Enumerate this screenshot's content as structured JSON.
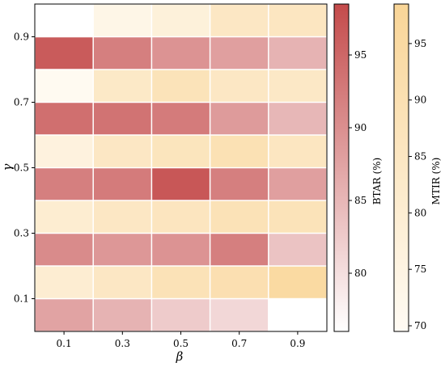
{
  "chart_data": {
    "type": "heatmap",
    "xlabel": "β",
    "ylabel": "γ",
    "x_ticks": [
      "0.1",
      "0.3",
      "0.5",
      "0.7",
      "0.9"
    ],
    "y_ticks": [
      "0.1",
      "0.3",
      "0.5",
      "0.7",
      "0.9"
    ],
    "metrics": [
      {
        "name": "BTAR (%)",
        "colormap": [
          "#ffffff",
          "#c44b4b"
        ],
        "range": [
          76,
          98.5
        ],
        "colorbar_ticks": [
          "80",
          "85",
          "90",
          "95"
        ],
        "rows": [
          {
            "gamma": "0.1",
            "values": [
              87.5,
              85.5,
              82.5,
              81.0,
              null
            ]
          },
          {
            "gamma": "0.3",
            "values": [
              90.5,
              89.0,
              89.5,
              92.0,
              83.5
            ]
          },
          {
            "gamma": "0.5",
            "values": [
              92.0,
              92.5,
              97.0,
              92.0,
              88.0
            ]
          },
          {
            "gamma": "0.7",
            "values": [
              94.0,
              93.5,
              92.5,
              88.5,
              85.0
            ]
          },
          {
            "gamma": "0.9",
            "values": [
              96.5,
              92.0,
              89.5,
              88.0,
              85.5
            ]
          }
        ]
      },
      {
        "name": "MTIR (%)",
        "colormap": [
          "#fffbf4",
          "#f9d597"
        ],
        "range": [
          69.5,
          98.5
        ],
        "colorbar_ticks": [
          "70",
          "75",
          "80",
          "85",
          "90",
          "95"
        ],
        "rows": [
          {
            "gamma": "0.1",
            "values": [
              80.0,
              84.5,
              88.5,
              90.5,
              95.0
            ]
          },
          {
            "gamma": "0.3",
            "values": [
              80.5,
              84.5,
              86.0,
              88.5,
              88.0
            ]
          },
          {
            "gamma": "0.5",
            "values": [
              76.5,
              84.5,
              86.5,
              89.5,
              85.5
            ]
          },
          {
            "gamma": "0.7",
            "values": [
              70.5,
              83.5,
              88.0,
              84.5,
              84.0
            ]
          },
          {
            "gamma": "0.9",
            "values": [
              null,
              73.5,
              77.5,
              84.5,
              85.5
            ]
          }
        ]
      }
    ]
  }
}
